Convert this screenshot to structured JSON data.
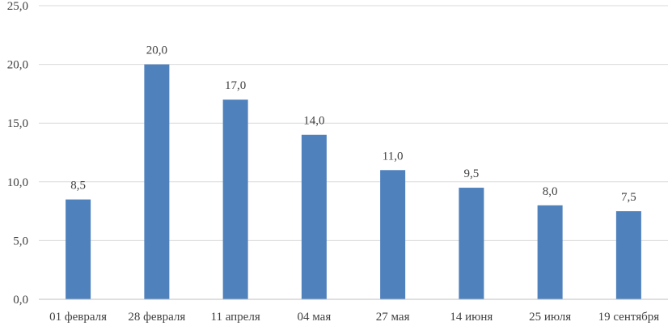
{
  "chart_data": {
    "type": "bar",
    "title": "",
    "xlabel": "",
    "ylabel": "",
    "categories": [
      "01 февраля",
      "28 февраля",
      "11 апреля",
      "04 мая",
      "27 мая",
      "14 июня",
      "25 июля",
      "19 сентября"
    ],
    "values": [
      8.5,
      20.0,
      17.0,
      14.0,
      11.0,
      9.5,
      8.0,
      7.5
    ],
    "data_labels": [
      "8,5",
      "20,0",
      "17,0",
      "14,0",
      "11,0",
      "9,5",
      "8,0",
      "7,5"
    ],
    "ylim": [
      0,
      25
    ],
    "yticks": [
      0,
      5,
      10,
      15,
      20,
      25
    ],
    "ytick_labels": [
      "0,0",
      "5,0",
      "10,0",
      "15,0",
      "20,0",
      "25,0"
    ],
    "grid": true,
    "legend": "none",
    "bar_color": "#4f81bd"
  }
}
